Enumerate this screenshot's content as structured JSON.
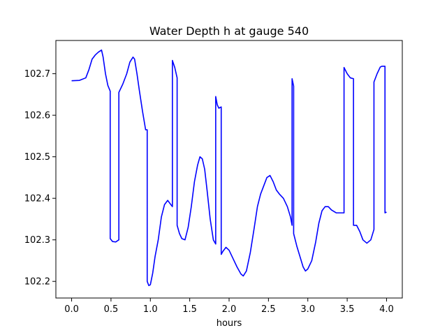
{
  "chart_data": {
    "type": "line",
    "title": "Water Depth h at gauge 540",
    "xlabel": "hours",
    "ylabel": "",
    "xlim": [
      -0.2,
      4.2
    ],
    "ylim": [
      102.16,
      102.78
    ],
    "xticks": [
      0.0,
      0.5,
      1.0,
      1.5,
      2.0,
      2.5,
      3.0,
      3.5,
      4.0
    ],
    "xtick_labels": [
      "0.0",
      "0.5",
      "1.0",
      "1.5",
      "2.0",
      "2.5",
      "3.0",
      "3.5",
      "4.0"
    ],
    "yticks": [
      102.2,
      102.3,
      102.4,
      102.5,
      102.6,
      102.7
    ],
    "ytick_labels": [
      "102.2",
      "102.3",
      "102.4",
      "102.5",
      "102.6",
      "102.7"
    ],
    "grid": false,
    "series": [
      {
        "color": "#0000ff",
        "x": [
          0.0,
          0.1,
          0.18,
          0.22,
          0.26,
          0.3,
          0.34,
          0.38,
          0.4,
          0.43,
          0.46,
          0.49,
          0.49,
          0.52,
          0.56,
          0.6,
          0.6,
          0.65,
          0.7,
          0.74,
          0.78,
          0.8,
          0.83,
          0.86,
          0.9,
          0.94,
          0.96,
          0.96,
          0.98,
          1.0,
          1.03,
          1.06,
          1.1,
          1.14,
          1.18,
          1.22,
          1.26,
          1.28,
          1.28,
          1.31,
          1.34,
          1.34,
          1.37,
          1.4,
          1.44,
          1.48,
          1.52,
          1.56,
          1.6,
          1.63,
          1.66,
          1.69,
          1.72,
          1.76,
          1.8,
          1.83,
          1.83,
          1.85,
          1.87,
          1.9,
          1.9,
          1.92,
          1.96,
          2.0,
          2.05,
          2.1,
          2.15,
          2.18,
          2.22,
          2.27,
          2.32,
          2.36,
          2.4,
          2.44,
          2.48,
          2.52,
          2.56,
          2.6,
          2.64,
          2.69,
          2.74,
          2.78,
          2.8,
          2.8,
          2.82,
          2.82,
          2.86,
          2.9,
          2.94,
          2.97,
          3.0,
          3.05,
          3.1,
          3.14,
          3.18,
          3.22,
          3.26,
          3.3,
          3.36,
          3.42,
          3.46,
          3.46,
          3.5,
          3.54,
          3.58,
          3.58,
          3.62,
          3.66,
          3.7,
          3.75,
          3.8,
          3.84,
          3.84,
          3.88,
          3.92,
          3.94,
          3.98,
          3.98,
          4.0
        ],
        "y": [
          102.683,
          102.684,
          102.69,
          102.71,
          102.735,
          102.745,
          102.752,
          102.757,
          102.74,
          102.7,
          102.672,
          102.658,
          102.303,
          102.296,
          102.295,
          102.3,
          102.655,
          102.675,
          102.7,
          102.728,
          102.74,
          102.735,
          102.7,
          102.66,
          102.61,
          102.565,
          102.565,
          102.2,
          102.19,
          102.192,
          102.22,
          102.26,
          102.3,
          102.355,
          102.385,
          102.395,
          102.385,
          102.38,
          102.732,
          102.715,
          102.69,
          102.335,
          102.315,
          102.303,
          102.3,
          102.33,
          102.38,
          102.44,
          102.48,
          102.5,
          102.495,
          102.47,
          102.42,
          102.35,
          102.3,
          102.29,
          102.645,
          102.625,
          102.617,
          102.62,
          102.265,
          102.272,
          102.282,
          102.275,
          102.255,
          102.235,
          102.218,
          102.213,
          102.225,
          102.27,
          102.33,
          102.38,
          102.41,
          102.43,
          102.45,
          102.455,
          102.44,
          102.42,
          102.41,
          102.4,
          102.38,
          102.355,
          102.335,
          102.688,
          102.67,
          102.315,
          102.285,
          102.26,
          102.235,
          102.225,
          102.23,
          102.25,
          102.295,
          102.34,
          102.37,
          102.38,
          102.38,
          102.372,
          102.365,
          102.365,
          102.365,
          102.715,
          102.7,
          102.69,
          102.688,
          102.335,
          102.335,
          102.32,
          102.3,
          102.292,
          102.3,
          102.325,
          102.68,
          102.7,
          102.716,
          102.718,
          102.718,
          102.365,
          102.367
        ]
      }
    ]
  }
}
